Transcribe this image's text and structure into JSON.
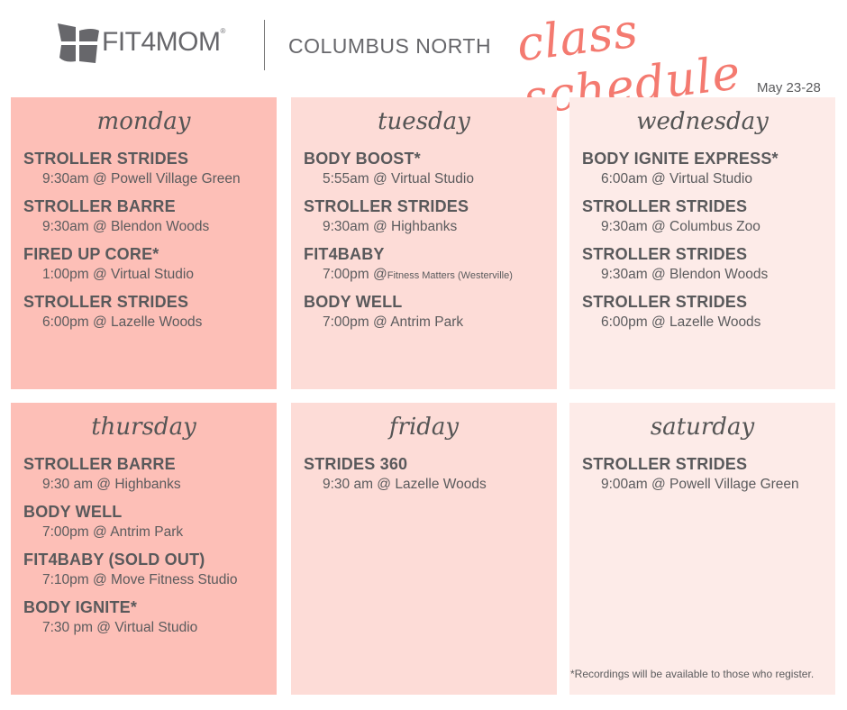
{
  "header": {
    "brand": "FIT4MOM",
    "chapter": "COLUMBUS NORTH",
    "title": "class schedule",
    "dates": "May 23-28"
  },
  "colors": {
    "monday": "#fdbfb7",
    "tuesday": "#fddcd7",
    "wednesday": "#fdebe8",
    "accent": "#f47a70",
    "text": "#5b5b5d"
  },
  "days": [
    {
      "day": "monday",
      "classes": [
        {
          "name": "STROLLER STRIDES",
          "time": "9:30am @ Powell Village Green"
        },
        {
          "name": "STROLLER BARRE",
          "time": "9:30am @ Blendon Woods"
        },
        {
          "name": "FIRED UP CORE*",
          "time": "1:00pm @ Virtual Studio"
        },
        {
          "name": "STROLLER STRIDES",
          "time": "6:00pm @ Lazelle Woods"
        }
      ]
    },
    {
      "day": "tuesday",
      "classes": [
        {
          "name": "BODY BOOST*",
          "time": "5:55am @ Virtual Studio"
        },
        {
          "name": "STROLLER STRIDES",
          "time": "9:30am @ Highbanks"
        },
        {
          "name": "FIT4BABY",
          "time": "7:00pm @",
          "time_small": "Fitness Matters (Westerville)"
        },
        {
          "name": "BODY WELL",
          "time": "7:00pm @ Antrim Park"
        }
      ]
    },
    {
      "day": "wednesday",
      "classes": [
        {
          "name": "BODY IGNITE EXPRESS*",
          "time": "6:00am @ Virtual Studio"
        },
        {
          "name": "STROLLER STRIDES",
          "time": "9:30am @ Columbus Zoo"
        },
        {
          "name": "STROLLER STRIDES",
          "time": "9:30am @ Blendon Woods"
        },
        {
          "name": "STROLLER STRIDES",
          "time": "6:00pm @ Lazelle Woods"
        }
      ]
    },
    {
      "day": "thursday",
      "classes": [
        {
          "name": "STROLLER BARRE",
          "time": "9:30 am @ Highbanks"
        },
        {
          "name": "BODY WELL",
          "time": "7:00pm @ Antrim Park"
        },
        {
          "name": "FIT4BABY (SOLD OUT)",
          "time": "7:10pm @ Move Fitness Studio"
        },
        {
          "name": "BODY IGNITE*",
          "time": "7:30 pm @ Virtual Studio"
        }
      ]
    },
    {
      "day": "friday",
      "classes": [
        {
          "name": "STRIDES 360",
          "time": "9:30 am @ Lazelle Woods"
        }
      ]
    },
    {
      "day": "saturday",
      "classes": [
        {
          "name": "STROLLER STRIDES",
          "time": "9:00am @ Powell Village Green"
        }
      ]
    }
  ],
  "footnote": "*Recordings will be available to those who register."
}
